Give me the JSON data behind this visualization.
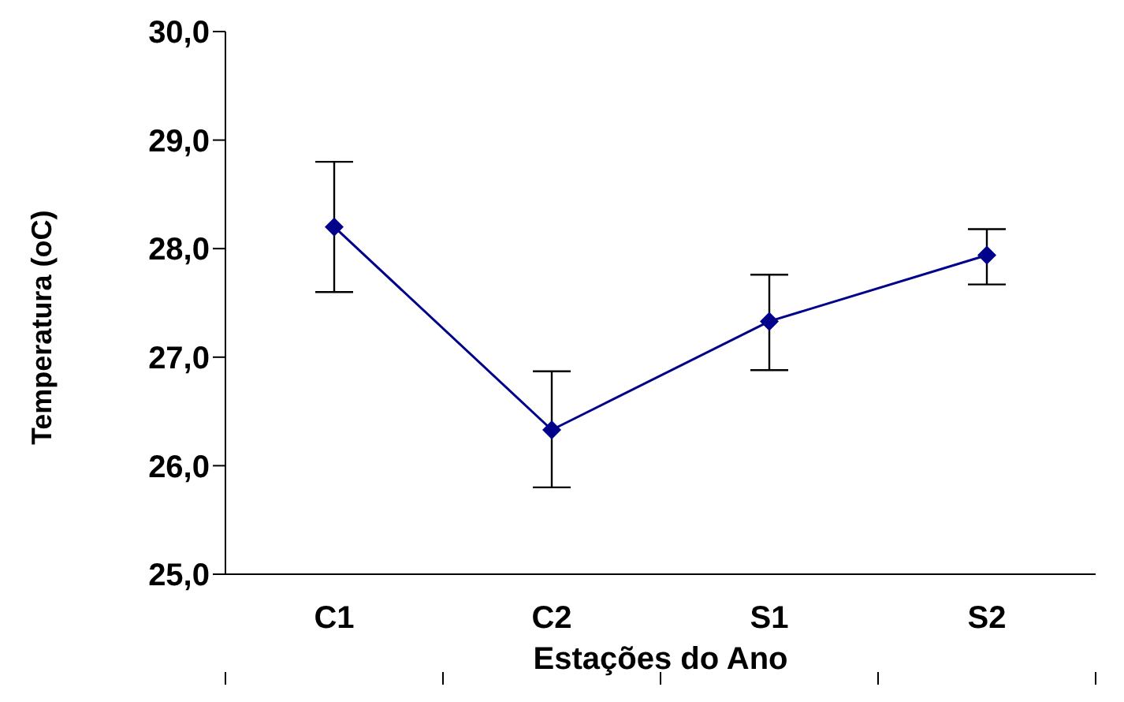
{
  "chart_data": {
    "type": "line",
    "xlabel": "Estações do Ano",
    "ylabel": "Temperatura (oC)",
    "categories": [
      "C1",
      "C2",
      "S1",
      "S2"
    ],
    "series": [
      {
        "color": "#00008b",
        "values": [
          28.2,
          26.33,
          27.33,
          27.94
        ],
        "errors": [
          [
            27.6,
            28.8
          ],
          [
            25.8,
            26.87
          ],
          [
            26.88,
            27.76
          ],
          [
            27.67,
            28.18
          ]
        ]
      }
    ],
    "ylim": [
      25,
      30
    ],
    "yticks": [
      {
        "value": 25,
        "label": "25,0"
      },
      {
        "value": 26,
        "label": "26,0"
      },
      {
        "value": 27,
        "label": "27,0"
      },
      {
        "value": 28,
        "label": "28,0"
      },
      {
        "value": 29,
        "label": "29,0"
      },
      {
        "value": 30,
        "label": "30,0"
      }
    ],
    "grid": false,
    "legend": false,
    "marker": "diamond",
    "line_style": "solid"
  }
}
